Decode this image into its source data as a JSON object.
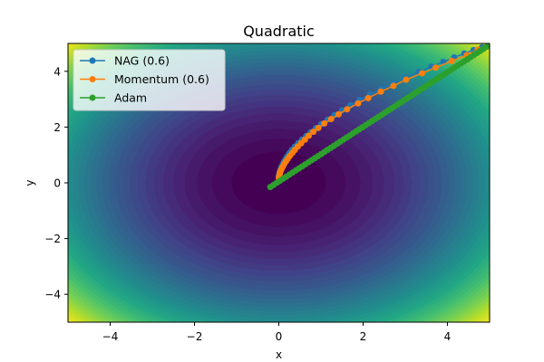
{
  "chart_data": {
    "type": "line",
    "title": "Quadratic",
    "xlabel": "x",
    "ylabel": "y",
    "xlim": [
      -5,
      5
    ],
    "ylim": [
      -5,
      5
    ],
    "x_ticks": [
      -4,
      -2,
      0,
      2,
      4
    ],
    "y_ticks": [
      -4,
      -2,
      0,
      2,
      4
    ],
    "background": {
      "kind": "filled contour",
      "function": "x^2 + y^2",
      "colormap": "viridis"
    },
    "legend_position": "upper-left",
    "series": [
      {
        "name": "NAG (0.6)",
        "color": "#1f77b4",
        "marker": "circle",
        "x": [
          5.0,
          4.82,
          4.62,
          4.4,
          4.16,
          3.9,
          3.62,
          3.32,
          3.0,
          2.7,
          2.42,
          2.16,
          1.92,
          1.7,
          1.5,
          1.32,
          1.16,
          1.01,
          0.88,
          0.76,
          0.65,
          0.55,
          0.46,
          0.38,
          0.31,
          0.25,
          0.2,
          0.16,
          0.12,
          0.09,
          0.06,
          0.04,
          0.02,
          0.01,
          0.0
        ],
        "y": [
          4.95,
          4.86,
          4.76,
          4.64,
          4.5,
          4.34,
          4.17,
          3.98,
          3.77,
          3.56,
          3.36,
          3.16,
          2.97,
          2.78,
          2.6,
          2.43,
          2.27,
          2.11,
          1.96,
          1.82,
          1.68,
          1.55,
          1.42,
          1.3,
          1.18,
          1.06,
          0.95,
          0.85,
          0.75,
          0.65,
          0.56,
          0.47,
          0.39,
          0.31,
          0.24
        ]
      },
      {
        "name": "Momentum (0.6)",
        "color": "#ff7f0e",
        "marker": "circle",
        "x": [
          5.0,
          4.72,
          4.46,
          4.1,
          3.72,
          3.4,
          3.02,
          2.72,
          2.42,
          2.12,
          1.88,
          1.62,
          1.42,
          1.24,
          1.08,
          0.94,
          0.82,
          0.71,
          0.62,
          0.53,
          0.45,
          0.38,
          0.32,
          0.26,
          0.21,
          0.17,
          0.13,
          0.1,
          0.07,
          0.05,
          0.03,
          0.02,
          0.01,
          0.0
        ],
        "y": [
          4.93,
          4.78,
          4.58,
          4.37,
          4.13,
          3.93,
          3.7,
          3.48,
          3.27,
          3.04,
          2.85,
          2.64,
          2.46,
          2.29,
          2.13,
          1.97,
          1.83,
          1.69,
          1.55,
          1.42,
          1.3,
          1.18,
          1.07,
          0.96,
          0.86,
          0.77,
          0.68,
          0.59,
          0.51,
          0.44,
          0.37,
          0.3,
          0.24,
          0.18
        ]
      },
      {
        "name": "Adam",
        "color": "#2ca02c",
        "marker": "circle",
        "x_start": 5.0,
        "y_start": 4.95,
        "x_end": -0.2,
        "y_end": -0.15,
        "points": 70
      }
    ]
  }
}
